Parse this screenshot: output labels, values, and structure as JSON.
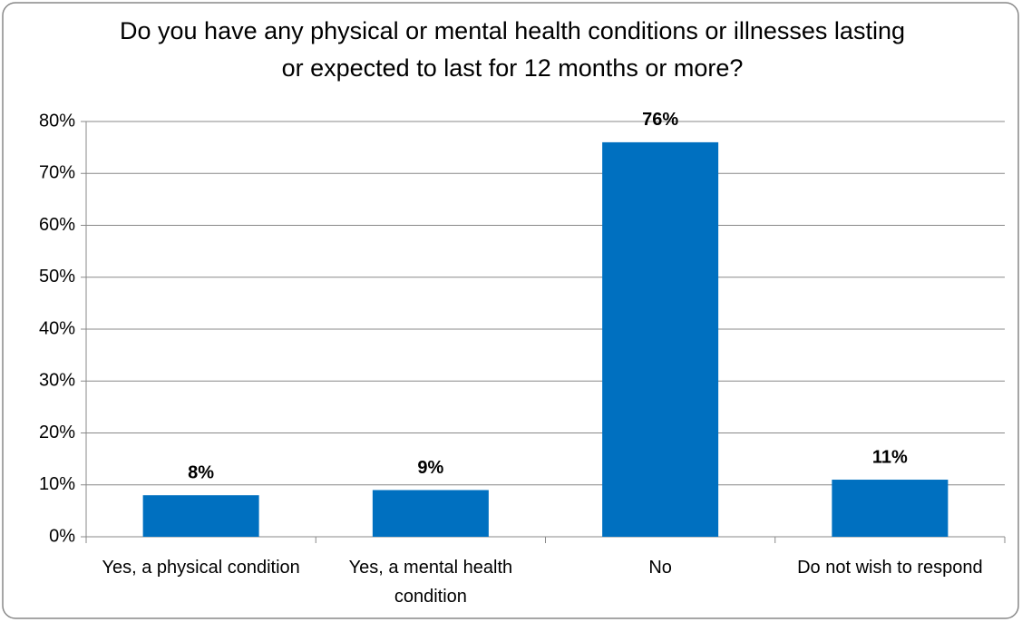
{
  "chart_data": {
    "type": "bar",
    "title": "Do you have any physical or mental health conditions or illnesses lasting or expected to last for 12 months or more?",
    "categories": [
      "Yes, a physical condition",
      "Yes, a mental health condition",
      "No",
      "Do not wish to respond"
    ],
    "values": [
      8,
      9,
      76,
      11
    ],
    "value_labels": [
      "8%",
      "9%",
      "76%",
      "11%"
    ],
    "color": "#0070c0",
    "ylim": [
      0,
      80
    ],
    "yticks": [
      {
        "value": 0,
        "label": "0%"
      },
      {
        "value": 10,
        "label": "10%"
      },
      {
        "value": 20,
        "label": "20%"
      },
      {
        "value": 30,
        "label": "30%"
      },
      {
        "value": 40,
        "label": "40%"
      },
      {
        "value": 50,
        "label": "50%"
      },
      {
        "value": 60,
        "label": "60%"
      },
      {
        "value": 70,
        "label": "70%"
      },
      {
        "value": 80,
        "label": "80%"
      }
    ],
    "grid": true
  }
}
